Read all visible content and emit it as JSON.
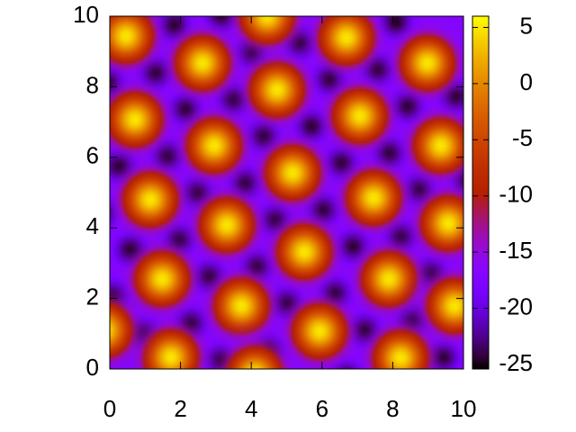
{
  "chart_data": {
    "type": "heatmap",
    "xlim": [
      0,
      10
    ],
    "ylim": [
      0,
      10
    ],
    "xticks": [
      0,
      2,
      4,
      6,
      8,
      10
    ],
    "yticks": [
      0,
      2,
      4,
      6,
      8,
      10
    ],
    "zlim": [
      -25.4,
      6
    ],
    "zticks": [
      5,
      0,
      -5,
      -10,
      -15,
      -20,
      -25
    ],
    "background": -17,
    "minima": {
      "x": [
        1.3,
        3.5,
        5.7,
        7.9,
        10.1,
        1.63,
        3.83,
        6.03,
        8.23,
        1.96,
        4.16,
        6.36,
        8.56,
        -0.24,
        2.29,
        4.49,
        6.69,
        0.09,
        3.17,
        5.37,
        7.57,
        9.77,
        2.15,
        4.35,
        6.55,
        8.75,
        -0.05,
        2.48,
        4.68,
        6.88,
        9.08,
        0.28,
        2.81,
        5.01,
        7.21,
        9.41,
        0.61,
        3.14,
        0.94,
        1.82,
        4.02,
        6.22,
        8.42,
        8.09
      ],
      "y": [
        8.4,
        7.64,
        6.88,
        6.12,
        5.36,
        6.03,
        5.27,
        4.51,
        3.75,
        3.66,
        2.9,
        2.14,
        1.38,
        4.42,
        1.29,
        0.53,
        -0.23,
        2.05,
        10.01,
        9.25,
        8.49,
        7.73,
        7.36,
        6.6,
        5.84,
        5.08,
        8.12,
        4.99,
        4.23,
        3.47,
        2.71,
        5.75,
        2.62,
        1.86,
        1.1,
        0.34,
        3.38,
        0.25,
        1.01,
        9.73,
        8.97,
        8.21,
        7.45,
        9.82
      ],
      "values": [
        -25,
        -25,
        -25,
        -25,
        -25,
        -25,
        -25,
        -25,
        -25,
        -25,
        -25,
        -25,
        -25,
        -25,
        -25,
        -25,
        -25,
        -25,
        -25,
        -25,
        -25,
        -25,
        -25,
        -25,
        -25,
        -25,
        -25,
        -25,
        -25,
        -25,
        -25,
        -25,
        -25,
        -25,
        -25,
        -25,
        -25,
        -25,
        -25,
        -25,
        -25,
        -25,
        -25,
        -25
      ]
    },
    "maxima": {
      "x": [
        0.46,
        2.62,
        4.73,
        7.07,
        9.36,
        0.71,
        2.95,
        5.17,
        7.46,
        9.57,
        1.15,
        3.31,
        5.5,
        7.89,
        9.75,
        1.48,
        3.72,
        5.93,
        8.22,
        1.73,
        -0.15,
        6.69,
        8.98,
        4.45,
        4.1
      ],
      "y": [
        9.44,
        8.67,
        7.91,
        7.17,
        6.33,
        7.07,
        6.33,
        5.56,
        4.85,
        4.13,
        4.8,
        4.08,
        3.32,
        2.55,
        1.79,
        2.55,
        1.79,
        1.07,
        0.31,
        0.33,
        1.1,
        9.39,
        8.67,
        10.0,
        -0.15
      ],
      "values": [
        5,
        5,
        5,
        5,
        5,
        5,
        5,
        5,
        5,
        5,
        5,
        5,
        5,
        5,
        5,
        5,
        5,
        5,
        5,
        5,
        5,
        5,
        5,
        5,
        5
      ]
    }
  }
}
